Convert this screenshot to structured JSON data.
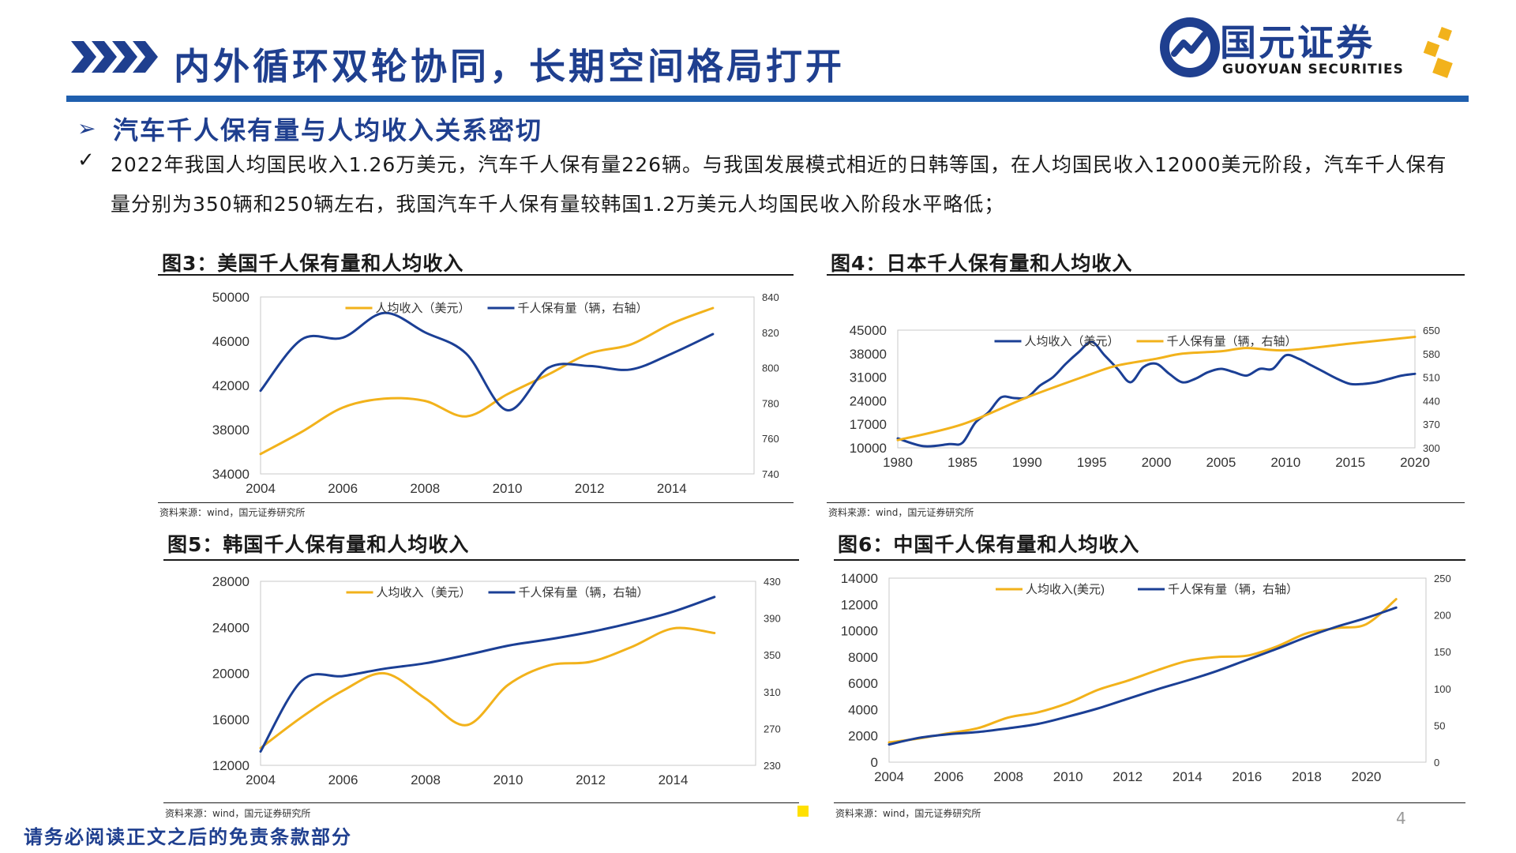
{
  "header": {
    "title": "内外循环双轮协同，长期空间格局打开",
    "logo_cn": "国元证券",
    "logo_en": "GUOYUAN SECURITIES"
  },
  "section": {
    "title": "汽车千人保有量与人均收入关系密切",
    "bullet": "2022年我国人均国民收入1.26万美元，汽车千人保有量226辆。与我国发展模式相近的日韩等国，在人均国民收入12000美元阶段，汽车千人保有量分别为350辆和250辆左右，我国汽车千人保有量较韩国1.2万美元人均国民收入阶段水平略低；"
  },
  "colors": {
    "income": "#f2b21b",
    "ownership": "#1b3f95",
    "brand": "#1f3f8f"
  },
  "chart_data": [
    {
      "id": "fig3",
      "type": "line",
      "title": "图3：美国千人保有量和人均收入",
      "source": "资料来源：wind，国元证券研究所",
      "x_ticks": [
        "2004",
        "2006",
        "2008",
        "2010",
        "2012",
        "2014"
      ],
      "xlim": [
        2004,
        2016
      ],
      "y_left": {
        "min": 34000,
        "max": 50000,
        "ticks": [
          "34000",
          "38000",
          "42000",
          "46000",
          "50000"
        ]
      },
      "y_right": {
        "min": 740,
        "max": 840,
        "ticks": [
          "740",
          "760",
          "780",
          "800",
          "820",
          "840"
        ]
      },
      "legend": [
        "人均收入（美元）",
        "千人保有量（辆，右轴）"
      ],
      "series": [
        {
          "name": "人均收入（美元）",
          "axis": "left",
          "color": "#f2b21b",
          "x": [
            2004,
            2005,
            2006,
            2007,
            2008,
            2009,
            2010,
            2011,
            2012,
            2013,
            2014,
            2015
          ],
          "values": [
            35800,
            37800,
            40000,
            40800,
            40600,
            39200,
            41200,
            43000,
            44900,
            45700,
            47600,
            49000
          ]
        },
        {
          "name": "千人保有量（辆，右轴）",
          "axis": "right",
          "color": "#1b3f95",
          "x": [
            2004,
            2005,
            2006,
            2007,
            2008,
            2009,
            2010,
            2011,
            2012,
            2013,
            2014,
            2015
          ],
          "values": [
            787,
            816,
            817,
            831,
            820,
            808,
            776,
            800,
            801,
            799,
            808,
            819
          ]
        }
      ]
    },
    {
      "id": "fig4",
      "type": "line",
      "title": "图4：日本千人保有量和人均收入",
      "source": "资料来源：wind，国元证券研究所",
      "x_ticks": [
        "1980",
        "1985",
        "1990",
        "1995",
        "2000",
        "2005",
        "2010",
        "2015",
        "2020"
      ],
      "xlim": [
        1980,
        2020
      ],
      "y_left": {
        "min": 10000,
        "max": 45000,
        "ticks": [
          "10000",
          "17000",
          "24000",
          "31000",
          "38000",
          "45000"
        ]
      },
      "y_right": {
        "min": 300,
        "max": 650,
        "ticks": [
          "300",
          "370",
          "440",
          "510",
          "580",
          "650"
        ]
      },
      "legend": [
        "人均收入（美元）",
        "千人保有量（辆，右轴）"
      ],
      "series": [
        {
          "name": "人均收入（美元）",
          "axis": "left",
          "color": "#1b3f95",
          "x": [
            1980,
            1982,
            1984,
            1985,
            1986,
            1987,
            1988,
            1989,
            1990,
            1991,
            1992,
            1993,
            1994,
            1995,
            1996,
            1997,
            1998,
            1999,
            2000,
            2001,
            2002,
            2003,
            2004,
            2005,
            2006,
            2007,
            2008,
            2009,
            2010,
            2011,
            2012,
            2013,
            2014,
            2015,
            2016,
            2017,
            2018,
            2019,
            2020
          ],
          "values": [
            12800,
            10500,
            11100,
            11500,
            17500,
            20500,
            25000,
            24800,
            25000,
            28500,
            31000,
            35000,
            38500,
            41500,
            37500,
            33500,
            29500,
            34000,
            35000,
            32000,
            29500,
            30500,
            32500,
            33500,
            32500,
            31500,
            33500,
            33500,
            37500,
            36500,
            34500,
            32500,
            30500,
            29000,
            29000,
            29500,
            30500,
            31500,
            32000
          ]
        },
        {
          "name": "千人保有量（辆，右轴）",
          "axis": "right",
          "color": "#f2b21b",
          "x": [
            1980,
            1985,
            1990,
            1995,
            1997,
            2000,
            2002,
            2005,
            2007,
            2010,
            2015,
            2020
          ],
          "values": [
            323,
            370,
            450,
            520,
            545,
            565,
            580,
            587,
            597,
            590,
            610,
            630
          ]
        }
      ]
    },
    {
      "id": "fig5",
      "type": "line",
      "title": "图5：韩国千人保有量和人均收入",
      "source": "资料来源：wind，国元证券研究所",
      "x_ticks": [
        "2004",
        "2006",
        "2008",
        "2010",
        "2012",
        "2014"
      ],
      "xlim": [
        2004,
        2016
      ],
      "y_left": {
        "min": 12000,
        "max": 28000,
        "ticks": [
          "12000",
          "16000",
          "20000",
          "24000",
          "28000"
        ]
      },
      "y_right": {
        "min": 230,
        "max": 430,
        "ticks": [
          "230",
          "270",
          "310",
          "350",
          "390",
          "430"
        ]
      },
      "legend": [
        "人均收入（美元）",
        "千人保有量（辆，右轴）"
      ],
      "series": [
        {
          "name": "人均收入（美元）",
          "axis": "left",
          "color": "#f2b21b",
          "x": [
            2004,
            2005,
            2006,
            2007,
            2008,
            2009,
            2010,
            2011,
            2012,
            2013,
            2014,
            2015
          ],
          "values": [
            13500,
            16200,
            18500,
            20000,
            17800,
            15500,
            19000,
            20700,
            21000,
            22300,
            23900,
            23500
          ]
        },
        {
          "name": "千人保有量（辆，右轴）",
          "axis": "right",
          "color": "#1b3f95",
          "x": [
            2004,
            2005,
            2006,
            2007,
            2008,
            2009,
            2010,
            2011,
            2012,
            2013,
            2014,
            2015
          ],
          "values": [
            245,
            322,
            327,
            335,
            341,
            350,
            360,
            367,
            375,
            385,
            397,
            413
          ]
        }
      ]
    },
    {
      "id": "fig6",
      "type": "line",
      "title": "图6：中国千人保有量和人均收入",
      "source": "资料来源：wind，国元证券研究所",
      "x_ticks": [
        "2004",
        "2006",
        "2008",
        "2010",
        "2012",
        "2014",
        "2016",
        "2018",
        "2020"
      ],
      "xlim": [
        2004,
        2022
      ],
      "y_left": {
        "min": 0,
        "max": 14000,
        "ticks": [
          "0",
          "2000",
          "4000",
          "6000",
          "8000",
          "10000",
          "12000",
          "14000"
        ]
      },
      "y_right": {
        "min": 0,
        "max": 250,
        "ticks": [
          "0",
          "50",
          "100",
          "150",
          "200",
          "250"
        ]
      },
      "legend": [
        "人均收入(美元)",
        "千人保有量（辆，右轴）"
      ],
      "series": [
        {
          "name": "人均收入(美元)",
          "axis": "left",
          "color": "#f2b21b",
          "x": [
            2004,
            2005,
            2006,
            2007,
            2008,
            2009,
            2010,
            2011,
            2012,
            2013,
            2014,
            2015,
            2016,
            2017,
            2018,
            2019,
            2020,
            2021
          ],
          "values": [
            1500,
            1800,
            2200,
            2600,
            3400,
            3800,
            4500,
            5500,
            6200,
            7000,
            7700,
            8000,
            8100,
            8800,
            9800,
            10200,
            10500,
            12400
          ]
        },
        {
          "name": "千人保有量（辆，右轴）",
          "axis": "right",
          "color": "#1b3f95",
          "x": [
            2004,
            2005,
            2006,
            2007,
            2008,
            2009,
            2010,
            2011,
            2012,
            2013,
            2014,
            2015,
            2016,
            2017,
            2018,
            2019,
            2020,
            2021
          ],
          "values": [
            24,
            33,
            38,
            41,
            46,
            52,
            62,
            73,
            86,
            99,
            111,
            124,
            139,
            154,
            170,
            184,
            196,
            210
          ]
        }
      ]
    }
  ],
  "footer": {
    "disclaimer": "请务必阅读正文之后的免责条款部分",
    "page": "4"
  }
}
